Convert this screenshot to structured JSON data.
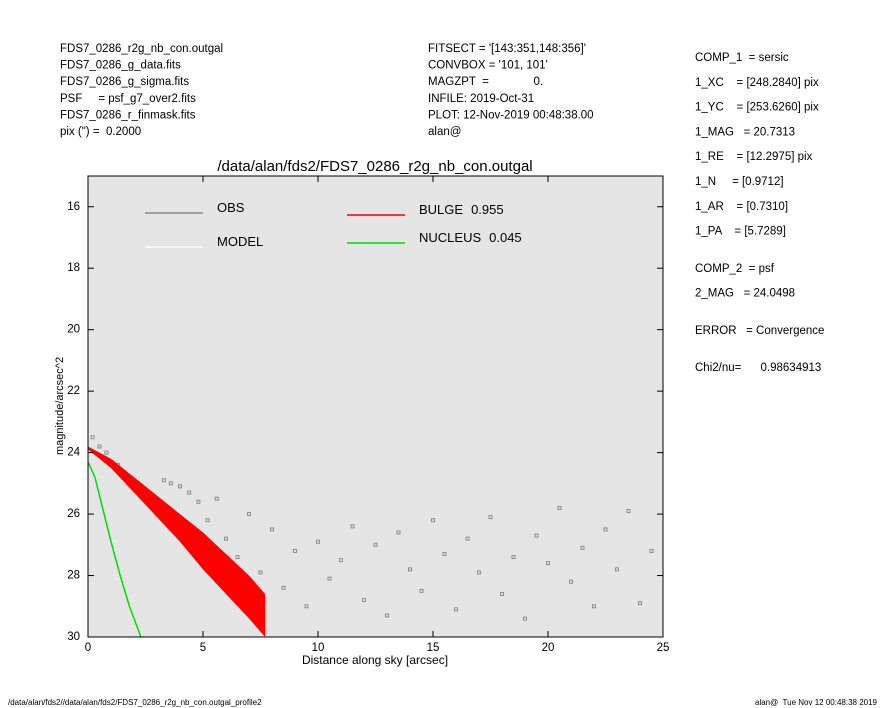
{
  "header_left": [
    "FDS7_0286_r2g_nb_con.outgal",
    "FDS7_0286_g_data.fits",
    "FDS7_0286_g_sigma.fits",
    "PSF     = psf_g7_over2.fits",
    "FDS7_0286_r_finmask.fits",
    "pix (\") =  0.2000"
  ],
  "header_middle": [
    "FITSECT = '[143:351,148:356]'",
    "CONVBOX = '101, 101'",
    "MAGZPT  =              0.",
    "INFILE: 2019-Oct-31",
    "PLOT: 12-Nov-2019 00:48:38.00",
    "alan@"
  ],
  "parameters": [
    [
      "COMP_1  = sersic",
      "1_XC    = [248.2840] pix",
      "1_YC    = [253.6260] pix",
      "1_MAG   = 20.7313",
      "1_RE    = [12.2975] pix",
      "1_N     = [0.9712]",
      "1_AR    = [0.7310]",
      "1_PA    = [5.7289]"
    ],
    [
      "COMP_2  = psf",
      "2_MAG   = 24.0498"
    ],
    [
      "ERROR   = Convergence"
    ],
    [
      "Chi2/nu=      0.98634913"
    ]
  ],
  "footer_left": "/data/alan/fds2//data/alan/fds2/FDS7_0286_r2g_nb_con.outgal_profile2",
  "footer_right": "alan@  Tue Nov 12 00:48:38 2019",
  "chart_data": {
    "type": "scatter",
    "title": "/data/alan/fds2/FDS7_0286_r2g_nb_con.outgal",
    "xlabel": "Distance along sky [arcsec]",
    "ylabel": "magnitude/arcsec^2",
    "xlim": [
      0,
      25
    ],
    "ylim": [
      30,
      15
    ],
    "xticks": [
      0,
      5,
      10,
      15,
      20,
      25
    ],
    "yticks": [
      16,
      18,
      20,
      22,
      24,
      26,
      28,
      30
    ],
    "background": "#e5e5e5",
    "series": [
      {
        "name": "OBS",
        "color": "#8c8c8c",
        "x": [
          0.2,
          0.5,
          0.8,
          1.0,
          1.3,
          1.5,
          1.8,
          2.0,
          2.3,
          2.6,
          3.0,
          3.3,
          3.6,
          4.0,
          4.4,
          4.8,
          5.2,
          5.6,
          6.0,
          6.5,
          7.0,
          7.5,
          8.0,
          8.5,
          9.0,
          9.5,
          10,
          10.5,
          11,
          11.5,
          12,
          12.5,
          13,
          13.5,
          14,
          14.5,
          15,
          15.5,
          16,
          16.5,
          17,
          17.5,
          18,
          18.5,
          19,
          19.5,
          20,
          20.5,
          21,
          21.5,
          22,
          22.5,
          23,
          23.5,
          24,
          24.5
        ],
        "values": [
          23.5,
          23.8,
          24.0,
          24.3,
          24.4,
          24.6,
          24.8,
          25.0,
          25.2,
          25.4,
          25.6,
          24.9,
          25.0,
          25.1,
          25.3,
          25.6,
          26.2,
          25.5,
          26.8,
          27.4,
          26.0,
          27.9,
          26.5,
          28.4,
          27.2,
          29.0,
          26.9,
          28.1,
          27.5,
          26.4,
          28.8,
          27.0,
          29.3,
          26.6,
          27.8,
          28.5,
          26.2,
          27.3,
          29.1,
          26.8,
          27.9,
          26.1,
          28.6,
          27.4,
          29.4,
          26.7,
          27.6,
          25.8,
          28.2,
          27.1,
          29.0,
          26.5,
          27.8,
          25.9,
          28.9,
          27.2
        ]
      },
      {
        "name": "MODEL",
        "color": "#ffffff"
      },
      {
        "name": "BULGE",
        "fraction": 0.955,
        "color": "#ff0000",
        "x": [
          0,
          1,
          2,
          3,
          4,
          5,
          6,
          7,
          7.7
        ],
        "values": [
          23.8,
          24.2,
          24.8,
          25.4,
          26.0,
          26.6,
          27.3,
          28.0,
          28.6
        ],
        "values2": [
          23.9,
          24.5,
          25.3,
          26.1,
          26.9,
          27.8,
          28.6,
          29.4,
          30
        ]
      },
      {
        "name": "NUCLEUS",
        "fraction": 0.045,
        "color": "#00dd00",
        "x": [
          0,
          0.3,
          0.6,
          1.0,
          1.4,
          1.8,
          2.3
        ],
        "values": [
          24.3,
          24.8,
          25.7,
          26.9,
          28.0,
          29.0,
          30
        ]
      }
    ]
  }
}
